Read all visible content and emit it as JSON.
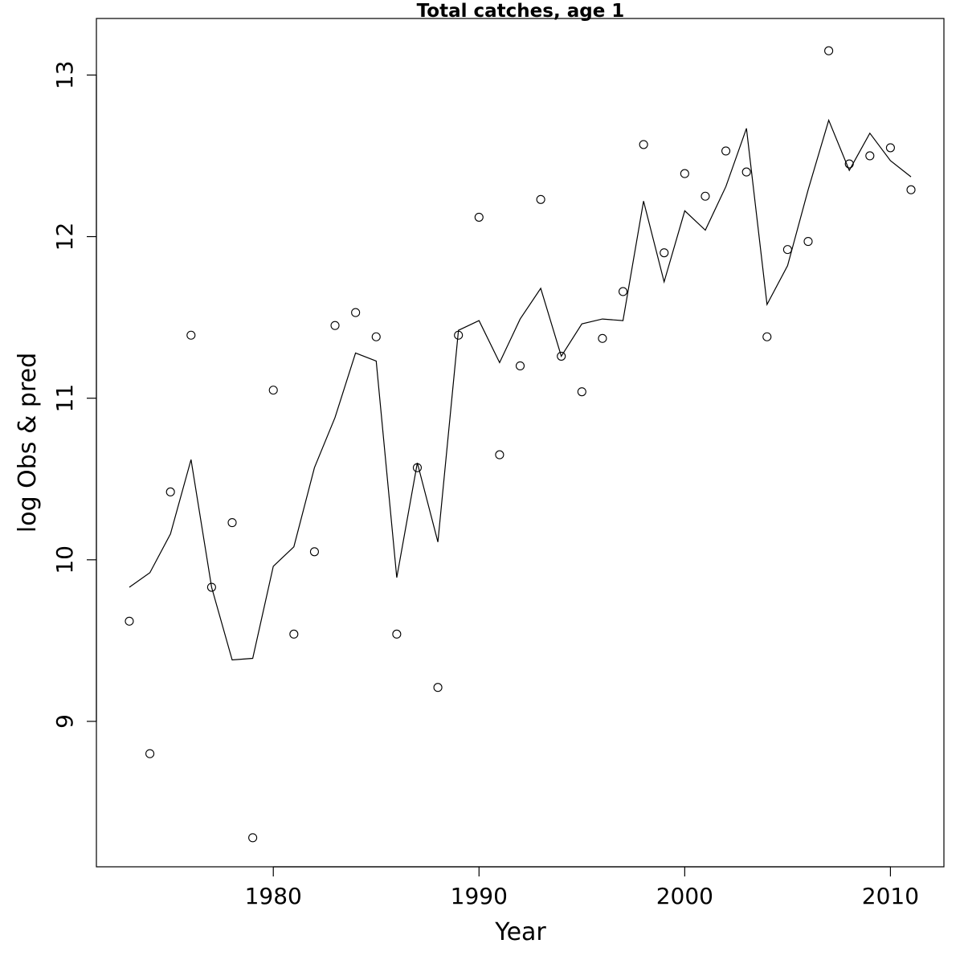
{
  "chart_data": {
    "type": "scatter",
    "title": "Total catches, age 1",
    "xlabel": "Year",
    "ylabel": "log Obs & pred",
    "xlim": [
      1971.4,
      2012.6
    ],
    "ylim": [
      8.1,
      13.35
    ],
    "xticks": [
      1980,
      1990,
      2000,
      2010
    ],
    "yticks": [
      9,
      10,
      11,
      12,
      13
    ],
    "grid": false,
    "series": [
      {
        "marker": "open-circle",
        "x": [
          1973,
          1974,
          1975,
          1976,
          1977,
          1978,
          1979,
          1980,
          1981,
          1982,
          1983,
          1984,
          1985,
          1986,
          1987,
          1988,
          1989,
          1990,
          1991,
          1992,
          1993,
          1994,
          1995,
          1996,
          1997,
          1998,
          1999,
          2000,
          2001,
          2002,
          2003,
          2004,
          2005,
          2006,
          2007,
          2008,
          2009,
          2010,
          2011
        ],
        "y": [
          9.62,
          8.8,
          10.42,
          11.39,
          9.83,
          10.23,
          8.28,
          11.05,
          9.54,
          10.05,
          11.45,
          11.53,
          11.38,
          9.54,
          10.57,
          9.21,
          11.39,
          12.12,
          10.65,
          11.2,
          12.23,
          11.26,
          11.04,
          11.37,
          11.66,
          12.57,
          11.9,
          12.39,
          12.25,
          12.53,
          12.4,
          11.38,
          11.92,
          11.97,
          13.15,
          12.45,
          12.5,
          12.55,
          12.29
        ]
      },
      {
        "marker": "line",
        "x": [
          1973,
          1974,
          1975,
          1976,
          1977,
          1978,
          1979,
          1980,
          1981,
          1982,
          1983,
          1984,
          1985,
          1986,
          1987,
          1988,
          1989,
          1990,
          1991,
          1992,
          1993,
          1994,
          1995,
          1996,
          1997,
          1998,
          1999,
          2000,
          2001,
          2002,
          2003,
          2004,
          2005,
          2006,
          2007,
          2008,
          2009,
          2010,
          2011
        ],
        "y": [
          9.83,
          9.92,
          10.16,
          10.62,
          9.83,
          9.38,
          9.39,
          9.96,
          10.08,
          10.57,
          10.88,
          11.28,
          11.23,
          9.89,
          10.6,
          10.11,
          11.42,
          11.48,
          11.22,
          11.49,
          11.68,
          11.26,
          11.46,
          11.49,
          11.48,
          12.22,
          11.72,
          12.16,
          12.04,
          12.31,
          12.67,
          11.58,
          11.82,
          12.29,
          12.72,
          12.41,
          12.64,
          12.47,
          12.37
        ]
      }
    ]
  }
}
